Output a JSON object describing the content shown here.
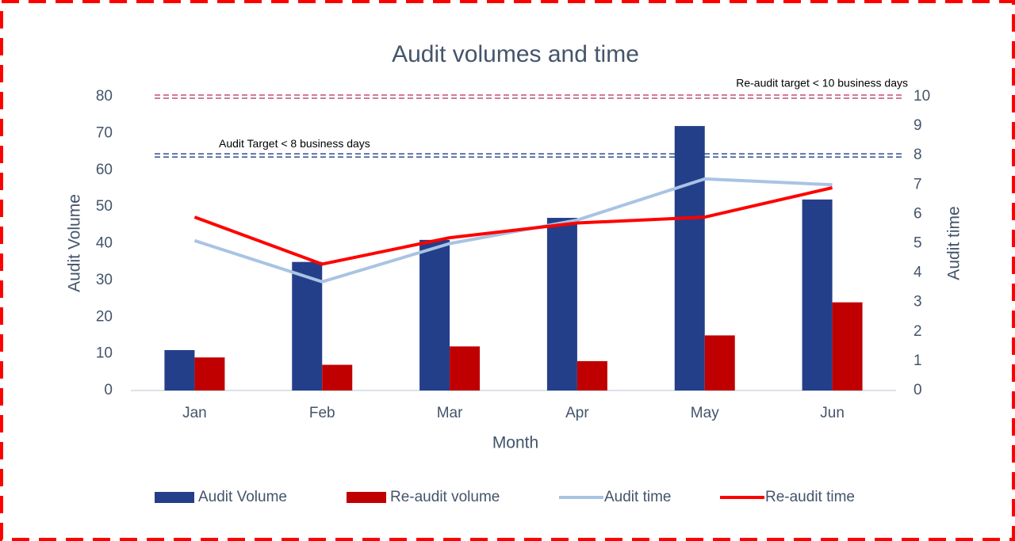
{
  "chart_data": {
    "type": "bar",
    "title": "Audit volumes and time",
    "x_label": "Month",
    "y_label": "Audit Volume",
    "y2_label": "Audit time",
    "categories": [
      "Jan",
      "Feb",
      "Mar",
      "Apr",
      "May",
      "Jun"
    ],
    "series": [
      {
        "name": "Audit Volume",
        "type": "bar",
        "color": "#243f8a",
        "values": [
          11,
          35,
          41,
          47,
          72,
          52
        ]
      },
      {
        "name": "Re-audit volume",
        "type": "bar",
        "color": "#c00000",
        "values": [
          9,
          7,
          12,
          8,
          15,
          24
        ]
      },
      {
        "name": "Audit time",
        "type": "line",
        "axis": "y2",
        "color": "#a9c3e3",
        "values": [
          5.1,
          3.7,
          5.0,
          5.8,
          7.2,
          7.0
        ]
      },
      {
        "name": "Re-audit time",
        "type": "line",
        "axis": "y2",
        "color": "#ff0000",
        "values": [
          5.9,
          4.3,
          5.2,
          5.7,
          5.9,
          6.9
        ]
      }
    ],
    "target_lines": [
      {
        "label": "Re-audit target < 10 business days",
        "value": 10,
        "axis": "y2",
        "color": "#c0507a"
      },
      {
        "label": "Audit Target < 8 business days",
        "value": 8,
        "axis": "y2",
        "color": "#2f4f8f"
      }
    ],
    "ylim": [
      0,
      80
    ],
    "yticks": [
      0,
      10,
      20,
      30,
      40,
      50,
      60,
      70,
      80
    ],
    "y2lim": [
      0,
      10
    ],
    "y2ticks": [
      0,
      1,
      2,
      3,
      4,
      5,
      6,
      7,
      8,
      9,
      10
    ],
    "legend": "bottom"
  }
}
